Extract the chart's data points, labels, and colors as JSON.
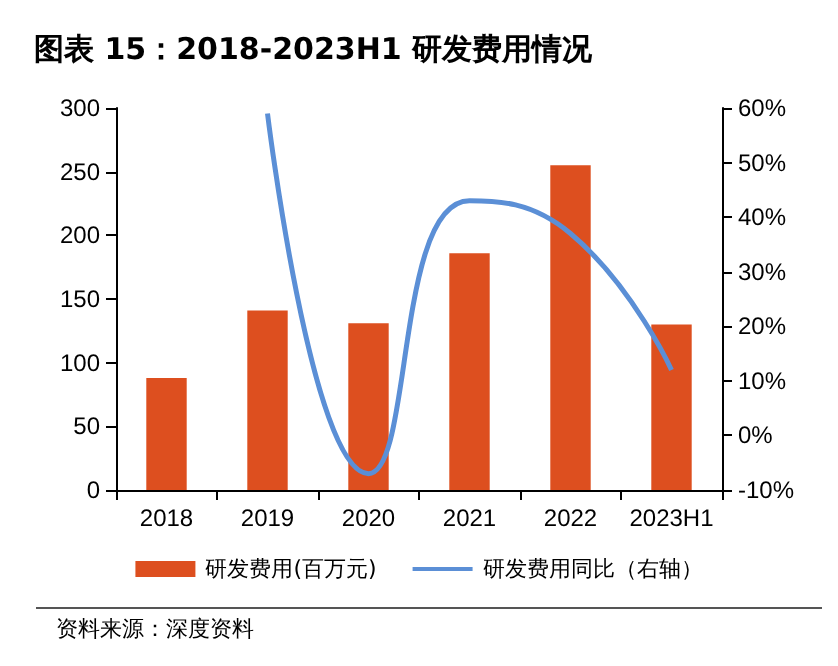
{
  "chart_data": {
    "type": "bar",
    "title": "图表 15：2018-2023H1 研发费用情况",
    "categories": [
      "2018",
      "2019",
      "2020",
      "2021",
      "2022",
      "2023H1"
    ],
    "series": [
      {
        "name": "研发费用(百万元)",
        "color": "#dd4f1f",
        "values": [
          88,
          141,
          131,
          186,
          255,
          130
        ]
      },
      {
        "name": "研发费用同比（右轴）",
        "type": "line",
        "axis": "y2",
        "color": "#5b8fd6",
        "values": [
          null,
          59,
          -7,
          43,
          37,
          12
        ]
      }
    ],
    "ylim": [
      0,
      300
    ],
    "yticks": [
      0,
      50,
      100,
      150,
      200,
      250,
      300
    ],
    "y2lim": [
      -10,
      60
    ],
    "y2ticks": [
      {
        "value": -10,
        "label": "-10%"
      },
      {
        "value": 0,
        "label": "0%"
      },
      {
        "value": 10,
        "label": "10%"
      },
      {
        "value": 20,
        "label": "20%"
      },
      {
        "value": 30,
        "label": "30%"
      },
      {
        "value": 40,
        "label": "40%"
      },
      {
        "value": 50,
        "label": "50%"
      },
      {
        "value": 60,
        "label": "60%"
      }
    ],
    "grid": false,
    "legend": "bottom",
    "marker": "none",
    "line_style": "solid",
    "annotations": [
      "资料来源：深度资料"
    ]
  }
}
